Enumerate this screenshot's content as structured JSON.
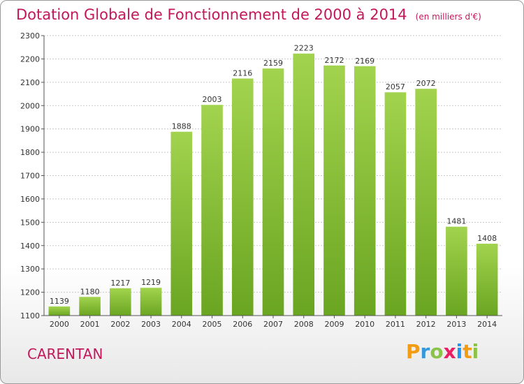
{
  "title": "Dotation Globale de Fonctionnement de 2000 à 2014",
  "subtitle": "(en milliers d'€)",
  "commune": "CARENTAN",
  "logo": [
    "P",
    "r",
    "o",
    "x",
    "i",
    "t",
    "i"
  ],
  "colors": {
    "bar": "#7cb82f",
    "bar_light": "#9fd04a",
    "title": "#c2185b"
  },
  "chart_data": {
    "type": "bar",
    "title": "Dotation Globale de Fonctionnement de 2000 à 2014",
    "subtitle": "(en milliers d'€)",
    "categories": [
      "2000",
      "2001",
      "2002",
      "2003",
      "2004",
      "2005",
      "2006",
      "2007",
      "2008",
      "2009",
      "2010",
      "2011",
      "2012",
      "2013",
      "2014"
    ],
    "values": [
      1139,
      1180,
      1217,
      1219,
      1888,
      2003,
      2116,
      2159,
      2223,
      2172,
      2169,
      2057,
      2072,
      1481,
      1408
    ],
    "ylim": [
      1100,
      2300
    ],
    "yticks": [
      1100,
      1200,
      1300,
      1400,
      1500,
      1600,
      1700,
      1800,
      1900,
      2000,
      2100,
      2200,
      2300
    ],
    "grid": true,
    "legend": "none"
  }
}
